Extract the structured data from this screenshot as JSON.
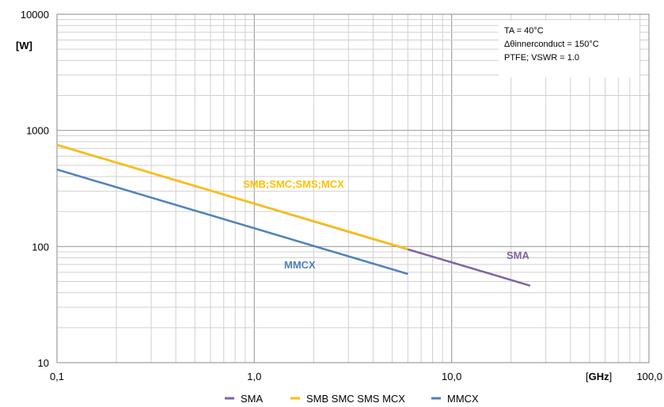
{
  "chart_data": {
    "type": "line",
    "x_scale": "log",
    "y_scale": "log",
    "xlim": [
      0.1,
      100
    ],
    "ylim": [
      10,
      10000
    ],
    "x_ticks": [
      "0,1",
      "1,0",
      "10,0",
      "100,0"
    ],
    "y_ticks": [
      "10",
      "100",
      "1000",
      "10000"
    ],
    "xlabel_parts": [
      "[",
      "GHz",
      "]"
    ],
    "ylabel": "[W]",
    "grid": true,
    "legend_position": "bottom",
    "info_box": [
      "TA = 40°C",
      "Δθinnerconduct = 150°C",
      "PTFE;  VSWR = 1.0"
    ],
    "series": [
      {
        "name": "SMA",
        "color": "#8064a2",
        "x": [
          0.1,
          25
        ],
        "y": [
          750,
          46
        ]
      },
      {
        "name": "SMB SMC SMS MCX",
        "color": "#ffc000",
        "x": [
          0.1,
          6
        ],
        "y": [
          750,
          95
        ]
      },
      {
        "name": "MMCX",
        "color": "#4f81bd",
        "x": [
          0.1,
          6
        ],
        "y": [
          460,
          58
        ]
      }
    ],
    "annotations": [
      {
        "text": "SMB;SMC;SMS;MCX",
        "color": "#ffc000"
      },
      {
        "text": "MMCX",
        "color": "#4f81bd"
      },
      {
        "text": "SMA",
        "color": "#8064a2"
      }
    ]
  }
}
